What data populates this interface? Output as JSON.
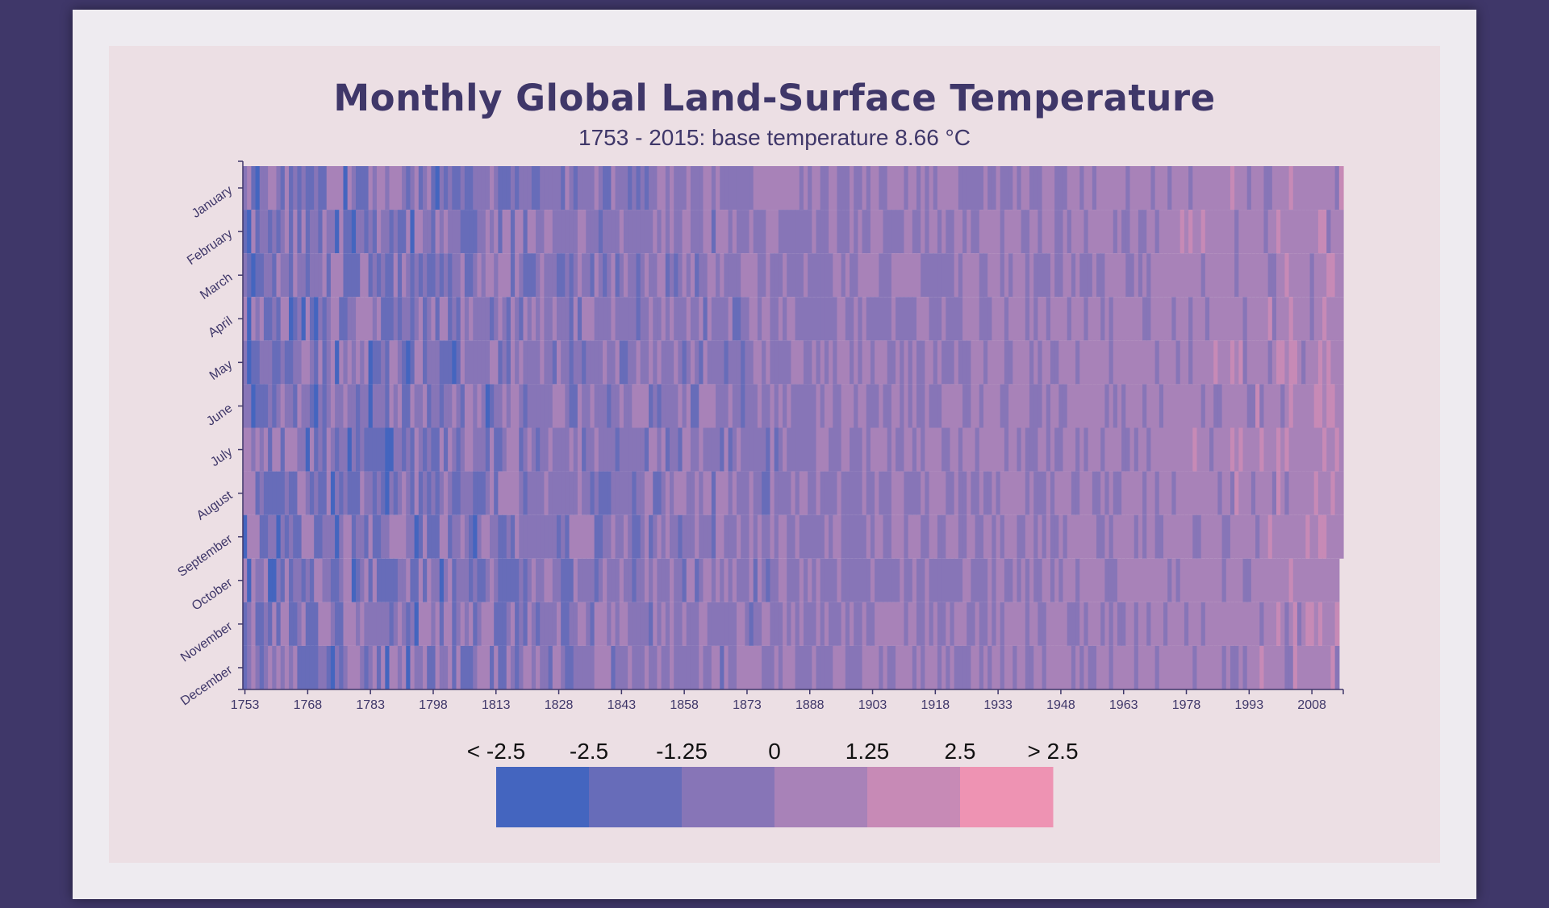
{
  "page": {
    "background": "#3f3769",
    "card_color": "#eeebf0",
    "panel_color": "#ecdfe4"
  },
  "chart_data": {
    "type": "heatmap",
    "title": "Monthly Global Land-Surface Temperature",
    "subtitle": "1753 - 2015: base temperature 8.66 °C",
    "base_temperature": 8.66,
    "x_range": [
      1753,
      2015
    ],
    "x_ticks": [
      "1753",
      "1768",
      "1783",
      "1798",
      "1813",
      "1828",
      "1843",
      "1858",
      "1873",
      "1888",
      "1903",
      "1918",
      "1933",
      "1948",
      "1963",
      "1978",
      "1993",
      "2008"
    ],
    "y_categories": [
      "January",
      "February",
      "March",
      "April",
      "May",
      "June",
      "July",
      "August",
      "September",
      "October",
      "November",
      "December"
    ],
    "last_year_months": 9,
    "legend": {
      "labels": [
        "< -2.5",
        "-2.5",
        "-1.25",
        "0",
        "1.25",
        "2.5",
        "> 2.5"
      ],
      "colors": [
        "#4465bf",
        "#676cb9",
        "#8775b7",
        "#a882b8",
        "#c78ab6",
        "#ee93b3"
      ],
      "thresholds": [
        -2.5,
        -1.25,
        0,
        1.25,
        2.5
      ]
    }
  }
}
